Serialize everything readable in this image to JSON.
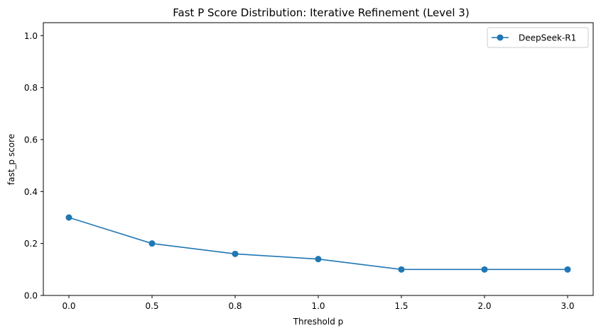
{
  "chart_data": {
    "type": "line",
    "title": "Fast P Score Distribution: Iterative Refinement (Level 3)",
    "xlabel": "Threshold p",
    "ylabel": "fast_p score",
    "categories": [
      "0.0",
      "0.5",
      "0.8",
      "1.0",
      "1.5",
      "2.0",
      "3.0"
    ],
    "series": [
      {
        "name": "DeepSeek-R1",
        "values": [
          0.3,
          0.2,
          0.16,
          0.14,
          0.1,
          0.1,
          0.1
        ],
        "color": "#1f77b4",
        "marker": "circle"
      }
    ],
    "ylim": [
      0,
      1.05
    ],
    "yticks": [
      0.0,
      0.2,
      0.4,
      0.6,
      0.8,
      1.0
    ],
    "ytick_labels": [
      "0.0",
      "0.2",
      "0.4",
      "0.6",
      "0.8",
      "1.0"
    ],
    "grid": false,
    "legend_position": "top-right"
  }
}
